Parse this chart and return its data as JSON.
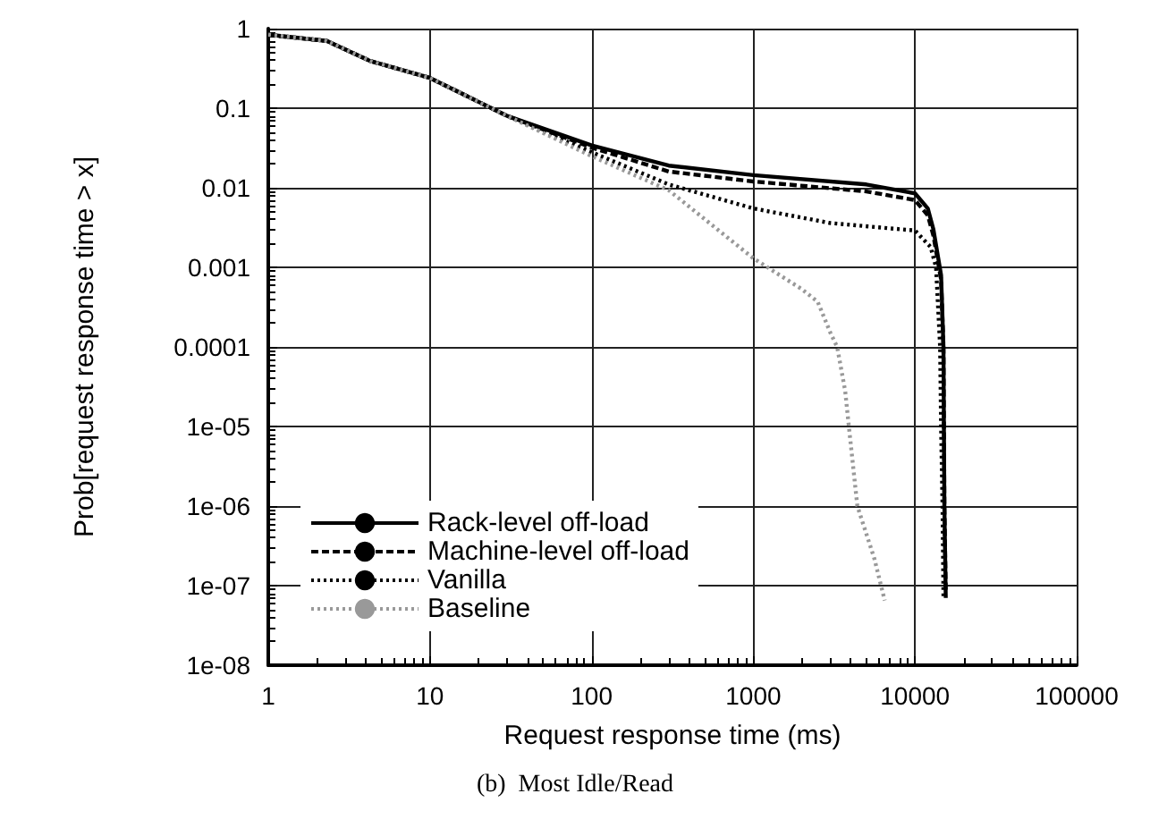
{
  "chart_data": {
    "type": "line",
    "xlabel": "Request response time (ms)",
    "ylabel": "Prob[request response time > x]",
    "annotations": [
      "(b)  Most Idle/Read"
    ],
    "log": "xy",
    "grid": true,
    "legend": "bottom left",
    "marker": "none",
    "xlim": [
      1,
      100000
    ],
    "xticks": [
      1,
      10,
      100,
      1000,
      10000,
      100000
    ],
    "ylim": [
      1e-08,
      1
    ],
    "yticks": [
      {
        "value": 1e-08,
        "label": "1e-08"
      },
      {
        "value": 1e-07,
        "label": "1e-07"
      },
      {
        "value": 1e-06,
        "label": "1e-06"
      },
      {
        "value": 1e-05,
        "label": "1e-05"
      },
      0.0001,
      0.001,
      0.01,
      0.1,
      1
    ],
    "series": [
      {
        "name": "Rack-level off-load",
        "color": "#000000",
        "line_style": "solid",
        "x": [
          1,
          2.3,
          4.3,
          10,
          30,
          100,
          300,
          1000,
          5000,
          10000,
          12000,
          13000,
          14500,
          15000,
          15200,
          15500
        ],
        "values": [
          0.84,
          0.7,
          0.39,
          0.24,
          0.08,
          0.034,
          0.019,
          0.0144,
          0.011,
          0.0085,
          0.0055,
          0.003,
          0.0008,
          0.0001,
          1e-06,
          7e-08
        ]
      },
      {
        "name": "Machine-level off-load",
        "color": "#000000",
        "line_style": "dashed",
        "x": [
          1,
          2.3,
          4.3,
          10,
          30,
          100,
          300,
          1000,
          5000,
          10000,
          12000,
          13000,
          14500,
          15000,
          15200,
          15500
        ],
        "values": [
          0.83,
          0.7,
          0.39,
          0.24,
          0.08,
          0.032,
          0.016,
          0.012,
          0.009,
          0.007,
          0.0045,
          0.0025,
          0.0007,
          0.0001,
          1e-06,
          8e-08
        ]
      },
      {
        "name": "Vanilla",
        "color": "#000000",
        "line_style": "dotted",
        "x": [
          1,
          2.3,
          4.3,
          10,
          30,
          100,
          300,
          1000,
          3000,
          10000,
          12500,
          13500,
          14300,
          14500,
          14800,
          15000
        ],
        "values": [
          0.84,
          0.7,
          0.39,
          0.24,
          0.08,
          0.028,
          0.011,
          0.0055,
          0.0036,
          0.0029,
          0.0018,
          0.001,
          0.0001,
          1e-05,
          1e-06,
          7e-08
        ]
      },
      {
        "name": "Baseline",
        "color": "#999999",
        "line_style": "dotted",
        "x": [
          1,
          2.3,
          4.3,
          10,
          30,
          100,
          300,
          1000,
          2000,
          2500,
          3000,
          3300,
          3700,
          3900,
          4400,
          5600,
          6500
        ],
        "values": [
          0.84,
          0.7,
          0.39,
          0.24,
          0.08,
          0.025,
          0.0093,
          0.0013,
          0.00053,
          0.00037,
          0.00015,
          0.0001,
          2.8e-05,
          1e-05,
          1e-06,
          2.2e-07,
          6.5e-08
        ]
      }
    ]
  }
}
